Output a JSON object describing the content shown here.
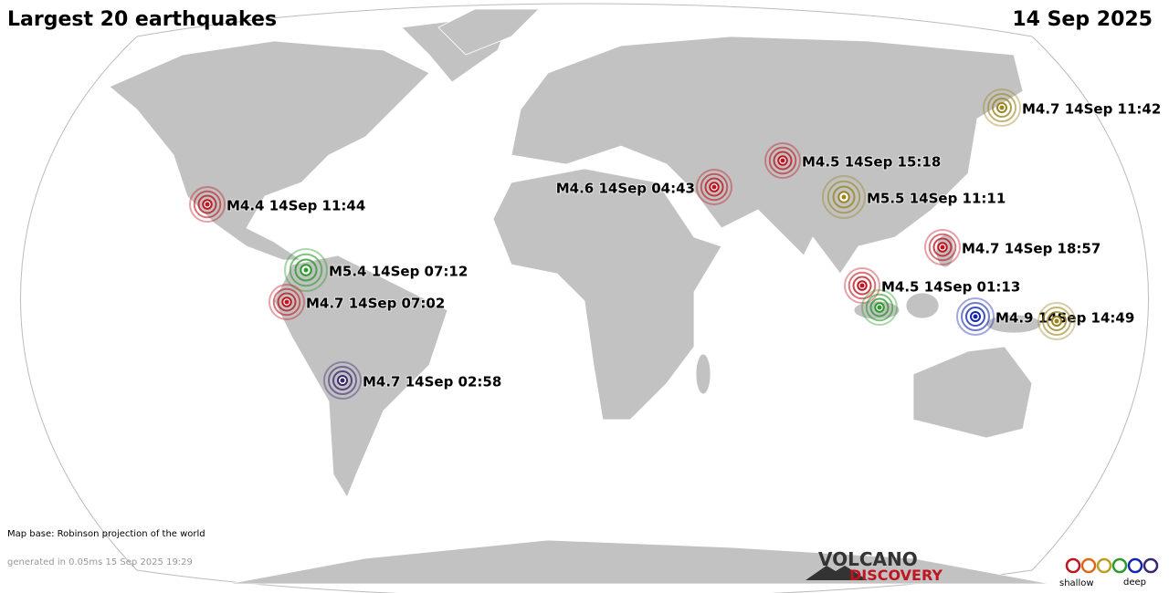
{
  "header": {
    "title": "Largest 20 earthquakes",
    "date": "14 Sep 2025"
  },
  "quakes": [
    {
      "label": "M4.7 14Sep 11:42",
      "color": "#9a8420"
    },
    {
      "label": "M4.5 14Sep 15:18",
      "color": "#c0141e"
    },
    {
      "label": "M4.6 14Sep 04:43",
      "color": "#c0141e"
    },
    {
      "label": "M5.5 14Sep 11:11",
      "color": "#9a8420"
    },
    {
      "label": "M4.4 14Sep 11:44",
      "color": "#c0141e"
    },
    {
      "label": "M4.7 14Sep 18:57",
      "color": "#c0141e"
    },
    {
      "label": "M5.4 14Sep 07:12",
      "color": "#2a9a2a"
    },
    {
      "label": "M4.5 14Sep 01:13",
      "color": "#c0141e"
    },
    {
      "label": "M4.7 14Sep 07:02",
      "color": "#c0141e"
    },
    {
      "label": "M4.9 14Sep 14:49",
      "color": "#1426b0"
    },
    {
      "color": "#2a9a2a"
    },
    {
      "color": "#9a8420"
    },
    {
      "label": "M4.7 14Sep 02:58",
      "color": "#3a2670"
    }
  ],
  "footer": {
    "map_base": "Map base: Robinson projection of the world",
    "generated": "generated in 0.05ms 15 Sep 2025 19:29"
  },
  "logo": {
    "line1": "VOLCANO",
    "line2": "DISCOVERY"
  },
  "legend": {
    "shallow": "shallow",
    "deep": "deep"
  }
}
